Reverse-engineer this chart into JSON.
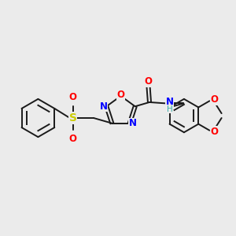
{
  "background_color": "#ebebeb",
  "bond_color": "#1a1a1a",
  "atom_colors": {
    "O": "#ff0000",
    "N": "#0000ff",
    "S": "#cccc00",
    "H": "#3aafa9",
    "C": "#1a1a1a"
  },
  "figsize": [
    3.0,
    3.0
  ],
  "dpi": 100,
  "lw": 1.4,
  "fs": 8.5,
  "fs_small": 7.5
}
